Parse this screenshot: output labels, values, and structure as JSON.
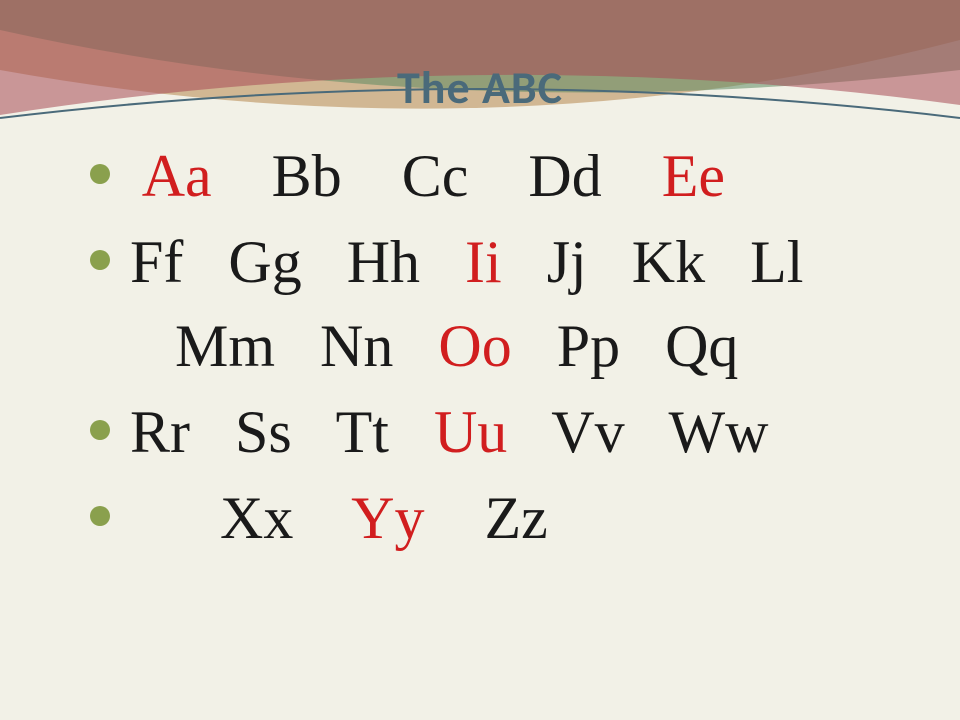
{
  "title": "The ABC",
  "title_color": "#4a6a7a",
  "title_fontsize": 46,
  "bullet_color": "#8aa04d",
  "background_color": "#f2f1e7",
  "letter_fontsize": 60,
  "colors": {
    "default": "#1a1a1a",
    "highlight": "#d11e1f"
  },
  "rows": [
    {
      "lead": " ",
      "items": [
        {
          "text": "Aa",
          "color": "highlight"
        },
        {
          "text": "Bb",
          "color": "default"
        },
        {
          "text": "Cc",
          "color": "default"
        },
        {
          "text": "Dd",
          "color": "default"
        },
        {
          "text": "Ee",
          "color": "highlight"
        }
      ],
      "gap": "    "
    },
    {
      "lead": "",
      "items": [
        {
          "text": "Ff",
          "color": "default"
        },
        {
          "text": "Gg",
          "color": "default"
        },
        {
          "text": "Hh",
          "color": "default"
        },
        {
          "text": "Ii",
          "color": "highlight"
        },
        {
          "text": "Jj",
          "color": "default"
        },
        {
          "text": "Kk",
          "color": "default"
        },
        {
          "text": "Ll",
          "color": "default"
        },
        {
          "text": "Mm",
          "color": "default"
        },
        {
          "text": "Nn",
          "color": "default"
        },
        {
          "text": "Oo",
          "color": "highlight"
        },
        {
          "text": "Pp",
          "color": "default"
        },
        {
          "text": "Qq",
          "color": "default"
        }
      ],
      "gap": "   "
    },
    {
      "lead": "",
      "items": [
        {
          "text": "Rr",
          "color": "default"
        },
        {
          "text": "Ss",
          "color": "default"
        },
        {
          "text": "Tt",
          "color": "default"
        },
        {
          "text": "Uu",
          "color": "highlight"
        },
        {
          "text": "Vv",
          "color": "default"
        },
        {
          "text": "Ww",
          "color": "default"
        }
      ],
      "gap": "   "
    },
    {
      "lead": "      ",
      "items": [
        {
          "text": "Xx",
          "color": "default"
        },
        {
          "text": "Yy",
          "color": "highlight"
        },
        {
          "text": "Zz",
          "color": "default"
        }
      ],
      "gap": "    "
    }
  ],
  "deco": {
    "curves": [
      {
        "fill": "#b6864f",
        "opacity": 0.55
      },
      {
        "fill": "#5f8a63",
        "opacity": 0.55
      },
      {
        "fill": "#a84a56",
        "opacity": 0.55
      }
    ],
    "rule_color": "#4a6a7a"
  }
}
